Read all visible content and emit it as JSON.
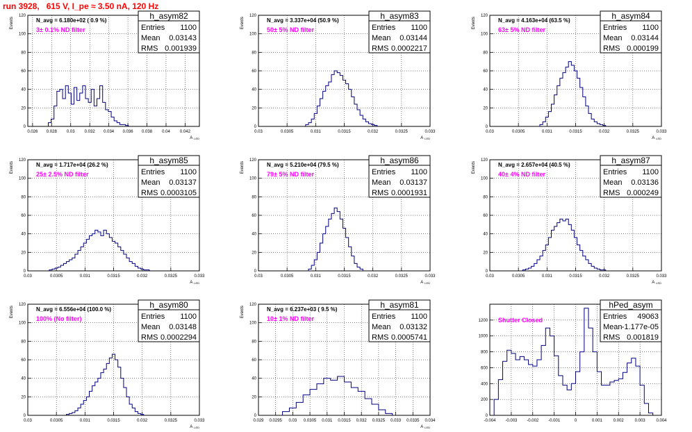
{
  "page": {
    "title": "run 3928,   615 V, I_pe ≈ 3.50 nA, 120 Hz"
  },
  "chart_data": [
    {
      "type": "bar",
      "name": "h_asym82",
      "navg": "N_avg = 6.180e+02 ( 0.9 %)",
      "filter": "3± 0.1% ND filter",
      "stats": [
        [
          "Entries",
          "1100"
        ],
        [
          "Mean",
          "0.03143"
        ],
        [
          "RMS",
          "0.001939"
        ]
      ],
      "xlabel": "A_{LED}",
      "ylabel": "Events",
      "xlim": [
        0.0255,
        0.0435
      ],
      "ylim": [
        0,
        120
      ],
      "xticks": [
        0.026,
        0.028,
        0.03,
        0.032,
        0.034,
        0.036,
        0.038,
        0.04,
        0.042
      ],
      "xtick_labels": [
        "0.026",
        "0.028",
        "0.03",
        "0.032",
        "0.034",
        "0.036",
        "0.038",
        "0.04",
        "0.042"
      ],
      "yticks": [
        0,
        20,
        40,
        60,
        80,
        100,
        120
      ],
      "x": [
        0.0278,
        0.0281,
        0.0284,
        0.0287,
        0.029,
        0.0293,
        0.0296,
        0.0299,
        0.0302,
        0.0305,
        0.0308,
        0.0311,
        0.0314,
        0.0317,
        0.032,
        0.0323,
        0.0326,
        0.0329,
        0.0332,
        0.0335,
        0.0338,
        0.0341,
        0.0344,
        0.0347,
        0.035,
        0.0353,
        0.0356,
        0.0359
      ],
      "values": [
        4,
        8,
        22,
        38,
        40,
        30,
        44,
        36,
        24,
        42,
        28,
        36,
        44,
        30,
        26,
        40,
        22,
        30,
        44,
        26,
        18,
        16,
        10,
        6,
        4,
        2,
        2,
        1
      ]
    },
    {
      "type": "bar",
      "name": "h_asym83",
      "navg": "N_avg = 3.337e+04 (50.9 %)",
      "filter": "50± 5% ND filter",
      "stats": [
        [
          "Entries",
          "1100"
        ],
        [
          "Mean",
          "0.03144"
        ],
        [
          "RMS",
          "0.0002217"
        ]
      ],
      "xlabel": "A_{LED}",
      "ylabel": "Events",
      "xlim": [
        0.03,
        0.033
      ],
      "ylim": [
        0,
        120
      ],
      "xticks": [
        0.03,
        0.0305,
        0.031,
        0.0315,
        0.032,
        0.0325,
        0.033
      ],
      "xtick_labels": [
        "0.03",
        "0.0305",
        "0.031",
        "0.0315",
        "0.032",
        "0.0325",
        "0.033"
      ],
      "yticks": [
        0,
        20,
        40,
        60,
        80,
        100,
        120
      ],
      "x": [
        0.03085,
        0.0309,
        0.03095,
        0.031,
        0.03105,
        0.0311,
        0.03115,
        0.0312,
        0.03125,
        0.0313,
        0.03135,
        0.0314,
        0.03145,
        0.0315,
        0.03155,
        0.0316,
        0.03165,
        0.0317,
        0.03175,
        0.0318,
        0.03185,
        0.0319,
        0.03195,
        0.032,
        0.03205
      ],
      "values": [
        2,
        4,
        8,
        14,
        22,
        30,
        38,
        44,
        48,
        56,
        60,
        58,
        55,
        50,
        46,
        40,
        32,
        24,
        18,
        12,
        8,
        5,
        3,
        2,
        1
      ]
    },
    {
      "type": "bar",
      "name": "h_asym84",
      "navg": "N_avg = 4.163e+04 (63.5 %)",
      "filter": "63± 5% ND filter",
      "stats": [
        [
          "Entries",
          "1100"
        ],
        [
          "Mean",
          "0.03144"
        ],
        [
          "RMS",
          "0.000199"
        ]
      ],
      "xlabel": "A_{LED}",
      "ylabel": "Events",
      "xlim": [
        0.03,
        0.033
      ],
      "ylim": [
        0,
        120
      ],
      "xticks": [
        0.03,
        0.0305,
        0.031,
        0.0315,
        0.032,
        0.0325,
        0.033
      ],
      "xtick_labels": [
        "0.03",
        "0.0305",
        "0.031",
        "0.0315",
        "0.032",
        "0.0325",
        "0.033"
      ],
      "yticks": [
        0,
        20,
        40,
        60,
        80,
        100,
        120
      ],
      "x": [
        0.0309,
        0.03095,
        0.031,
        0.03105,
        0.0311,
        0.03115,
        0.0312,
        0.03125,
        0.0313,
        0.03135,
        0.0314,
        0.03145,
        0.0315,
        0.03155,
        0.0316,
        0.03165,
        0.0317,
        0.03175,
        0.0318,
        0.03185,
        0.0319,
        0.03195,
        0.032
      ],
      "values": [
        2,
        5,
        10,
        16,
        24,
        34,
        44,
        52,
        58,
        64,
        70,
        66,
        60,
        52,
        42,
        32,
        22,
        14,
        8,
        5,
        3,
        2,
        1
      ]
    },
    {
      "type": "bar",
      "name": "h_asym85",
      "navg": "N_avg = 1.717e+04 (26.2 %)",
      "filter": "25± 2.5% ND filter",
      "stats": [
        [
          "Entries",
          "1100"
        ],
        [
          "Mean",
          "0.03137"
        ],
        [
          "RMS",
          "0.0003105"
        ]
      ],
      "xlabel": "A_{LED}",
      "ylabel": "Events",
      "xlim": [
        0.03,
        0.033
      ],
      "ylim": [
        0,
        120
      ],
      "xticks": [
        0.03,
        0.0305,
        0.031,
        0.0315,
        0.032,
        0.0325,
        0.033
      ],
      "xtick_labels": [
        "0.03",
        "0.0305",
        "0.031",
        "0.0315",
        "0.032",
        "0.0325",
        "0.033"
      ],
      "yticks": [
        0,
        20,
        40,
        60,
        80,
        100,
        120
      ],
      "x": [
        0.0304,
        0.03045,
        0.0305,
        0.03055,
        0.0306,
        0.03065,
        0.0307,
        0.03075,
        0.0308,
        0.03085,
        0.0309,
        0.03095,
        0.031,
        0.03105,
        0.0311,
        0.03115,
        0.0312,
        0.03125,
        0.0313,
        0.03135,
        0.0314,
        0.03145,
        0.0315,
        0.03155,
        0.0316,
        0.03165,
        0.0317,
        0.03175,
        0.0318,
        0.03185,
        0.0319,
        0.03195,
        0.032,
        0.03205,
        0.0321
      ],
      "values": [
        1,
        2,
        3,
        4,
        6,
        8,
        10,
        12,
        14,
        18,
        22,
        26,
        30,
        34,
        38,
        40,
        44,
        42,
        38,
        44,
        40,
        36,
        32,
        30,
        26,
        22,
        18,
        14,
        10,
        8,
        5,
        3,
        2,
        1,
        1
      ]
    },
    {
      "type": "bar",
      "name": "h_asym86",
      "navg": "N_avg = 5.210e+04 (79.5 %)",
      "filter": "79± 5% ND filter",
      "stats": [
        [
          "Entries",
          "1100"
        ],
        [
          "Mean",
          "0.03137"
        ],
        [
          "RMS",
          "0.0001931"
        ]
      ],
      "xlabel": "A_{LED}",
      "ylabel": "Events",
      "xlim": [
        0.03,
        0.033
      ],
      "ylim": [
        0,
        120
      ],
      "xticks": [
        0.03,
        0.0305,
        0.031,
        0.0315,
        0.032,
        0.0325,
        0.033
      ],
      "xtick_labels": [
        "0.03",
        "0.0305",
        "0.031",
        "0.0315",
        "0.032",
        "0.0325",
        "0.033"
      ],
      "yticks": [
        0,
        20,
        40,
        60,
        80,
        100,
        120
      ],
      "x": [
        0.0309,
        0.03095,
        0.031,
        0.03105,
        0.0311,
        0.03115,
        0.0312,
        0.03125,
        0.0313,
        0.03135,
        0.0314,
        0.03145,
        0.0315,
        0.03155,
        0.0316,
        0.03165,
        0.0317,
        0.03175,
        0.0318
      ],
      "values": [
        2,
        6,
        12,
        20,
        30,
        40,
        48,
        56,
        62,
        68,
        64,
        56,
        46,
        36,
        26,
        16,
        8,
        4,
        2
      ]
    },
    {
      "type": "bar",
      "name": "h_asym87",
      "navg": "N_avg = 2.657e+04 (40.5 %)",
      "filter": "40± 4% ND filter",
      "stats": [
        [
          "Entries",
          "1100"
        ],
        [
          "Mean",
          "0.03136"
        ],
        [
          "RMS",
          "0.000249"
        ]
      ],
      "xlabel": "A_{LED}",
      "ylabel": "Events",
      "xlim": [
        0.03,
        0.033
      ],
      "ylim": [
        0,
        120
      ],
      "xticks": [
        0.03,
        0.0305,
        0.031,
        0.0315,
        0.032,
        0.0325,
        0.033
      ],
      "xtick_labels": [
        "0.03",
        "0.0305",
        "0.031",
        "0.0315",
        "0.032",
        "0.0325",
        "0.033"
      ],
      "yticks": [
        0,
        20,
        40,
        60,
        80,
        100,
        120
      ],
      "x": [
        0.0306,
        0.03065,
        0.0307,
        0.03075,
        0.0308,
        0.03085,
        0.0309,
        0.03095,
        0.031,
        0.03105,
        0.0311,
        0.03115,
        0.0312,
        0.03125,
        0.0313,
        0.03135,
        0.0314,
        0.03145,
        0.0315,
        0.03155,
        0.0316,
        0.03165,
        0.0317,
        0.03175,
        0.0318,
        0.03185,
        0.0319,
        0.03195,
        0.032
      ],
      "values": [
        1,
        2,
        3,
        5,
        8,
        12,
        16,
        22,
        28,
        36,
        44,
        48,
        52,
        56,
        54,
        56,
        50,
        44,
        36,
        28,
        22,
        16,
        12,
        8,
        5,
        3,
        2,
        1,
        1
      ]
    },
    {
      "type": "bar",
      "name": "h_asym80",
      "navg": "N_avg = 6.556e+04 (100.0 %)",
      "filter": "100% (No filter)",
      "stats": [
        [
          "Entries",
          "1100"
        ],
        [
          "Mean",
          "0.03148"
        ],
        [
          "RMS",
          "0.0002294"
        ]
      ],
      "xlabel": "A_{LED}",
      "ylabel": "Events",
      "xlim": [
        0.03,
        0.033
      ],
      "ylim": [
        0,
        120
      ],
      "xticks": [
        0.03,
        0.0305,
        0.031,
        0.0315,
        0.032,
        0.0325,
        0.033
      ],
      "xtick_labels": [
        "0.03",
        "0.0305",
        "0.031",
        "0.0315",
        "0.032",
        "0.0325",
        "0.033"
      ],
      "yticks": [
        0,
        20,
        40,
        60,
        80,
        100,
        120
      ],
      "x": [
        0.0307,
        0.03075,
        0.0308,
        0.03085,
        0.0309,
        0.03095,
        0.031,
        0.03105,
        0.0311,
        0.03115,
        0.0312,
        0.03125,
        0.0313,
        0.03135,
        0.0314,
        0.03145,
        0.0315,
        0.03155,
        0.0316,
        0.03165,
        0.0317,
        0.03175,
        0.0318,
        0.03185,
        0.0319,
        0.03195,
        0.032
      ],
      "values": [
        1,
        2,
        3,
        5,
        8,
        12,
        16,
        20,
        26,
        32,
        36,
        40,
        46,
        50,
        56,
        62,
        66,
        60,
        52,
        40,
        30,
        20,
        12,
        8,
        4,
        2,
        1
      ]
    },
    {
      "type": "bar",
      "name": "h_asym81",
      "navg": "N_avg = 6.237e+03 ( 9.5 %)",
      "filter": "10± 1% ND filter",
      "stats": [
        [
          "Entries",
          "1100"
        ],
        [
          "Mean",
          "0.03132"
        ],
        [
          "RMS",
          "0.0005741"
        ]
      ],
      "xlabel": "A_{LED}",
      "ylabel": "Events",
      "xlim": [
        0.029,
        0.034
      ],
      "ylim": [
        0,
        120
      ],
      "xticks": [
        0.029,
        0.0295,
        0.03,
        0.0305,
        0.031,
        0.0315,
        0.032,
        0.0325,
        0.033,
        0.0335,
        0.034
      ],
      "xtick_labels": [
        "0.029",
        "0.0295",
        "0.03",
        "0.0305",
        "0.031",
        "0.0315",
        "0.032",
        "0.0325",
        "0.033",
        "0.0335",
        "0.034"
      ],
      "yticks": [
        0,
        20,
        40,
        60,
        80,
        100,
        120
      ],
      "x": [
        0.0298,
        0.03,
        0.0302,
        0.0304,
        0.0306,
        0.0308,
        0.031,
        0.0312,
        0.0314,
        0.0316,
        0.0318,
        0.032,
        0.0322,
        0.0324,
        0.0326,
        0.0328
      ],
      "values": [
        4,
        8,
        14,
        22,
        28,
        34,
        40,
        38,
        42,
        36,
        30,
        26,
        18,
        12,
        6,
        2
      ]
    },
    {
      "type": "bar",
      "name": "hPed_asym",
      "navg": "",
      "filter": "Shutter Closed",
      "stats": [
        [
          "Entries",
          "49063"
        ],
        [
          "Mean",
          "-1.177e-05"
        ],
        [
          "RMS",
          "0.001819"
        ]
      ],
      "xlabel": "",
      "ylabel": "",
      "xlim": [
        -0.004,
        0.004
      ],
      "ylim": [
        0,
        1400
      ],
      "xticks": [
        -0.004,
        -0.003,
        -0.002,
        -0.001,
        0,
        0.001,
        0.002,
        0.003,
        0.004
      ],
      "xtick_labels": [
        "-0.004",
        "-0.003",
        "-0.002",
        "-0.001",
        "0",
        "0.001",
        "0.002",
        "0.003",
        "0.004"
      ],
      "yticks": [
        0,
        200,
        400,
        600,
        800,
        1000,
        1200
      ],
      "x": [
        -0.0037,
        -0.0035,
        -0.0033,
        -0.0031,
        -0.0029,
        -0.0027,
        -0.0025,
        -0.0023,
        -0.0021,
        -0.0019,
        -0.0017,
        -0.0015,
        -0.0013,
        -0.0011,
        -0.0009,
        -0.0007,
        -0.0005,
        -0.0003,
        -0.0001,
        0.0001,
        0.0003,
        0.0005,
        0.0007,
        0.0009,
        0.0011,
        0.0013,
        0.0015,
        0.0017,
        0.0019,
        0.0021,
        0.0023,
        0.0025,
        0.0027,
        0.0029,
        0.0031,
        0.0033,
        0.0035
      ],
      "values": [
        200,
        450,
        680,
        820,
        780,
        700,
        740,
        700,
        640,
        620,
        700,
        880,
        1100,
        1000,
        750,
        500,
        380,
        320,
        400,
        550,
        800,
        1350,
        1100,
        800,
        550,
        380,
        380,
        420,
        440,
        460,
        540,
        660,
        720,
        620,
        380,
        150,
        30
      ]
    }
  ]
}
